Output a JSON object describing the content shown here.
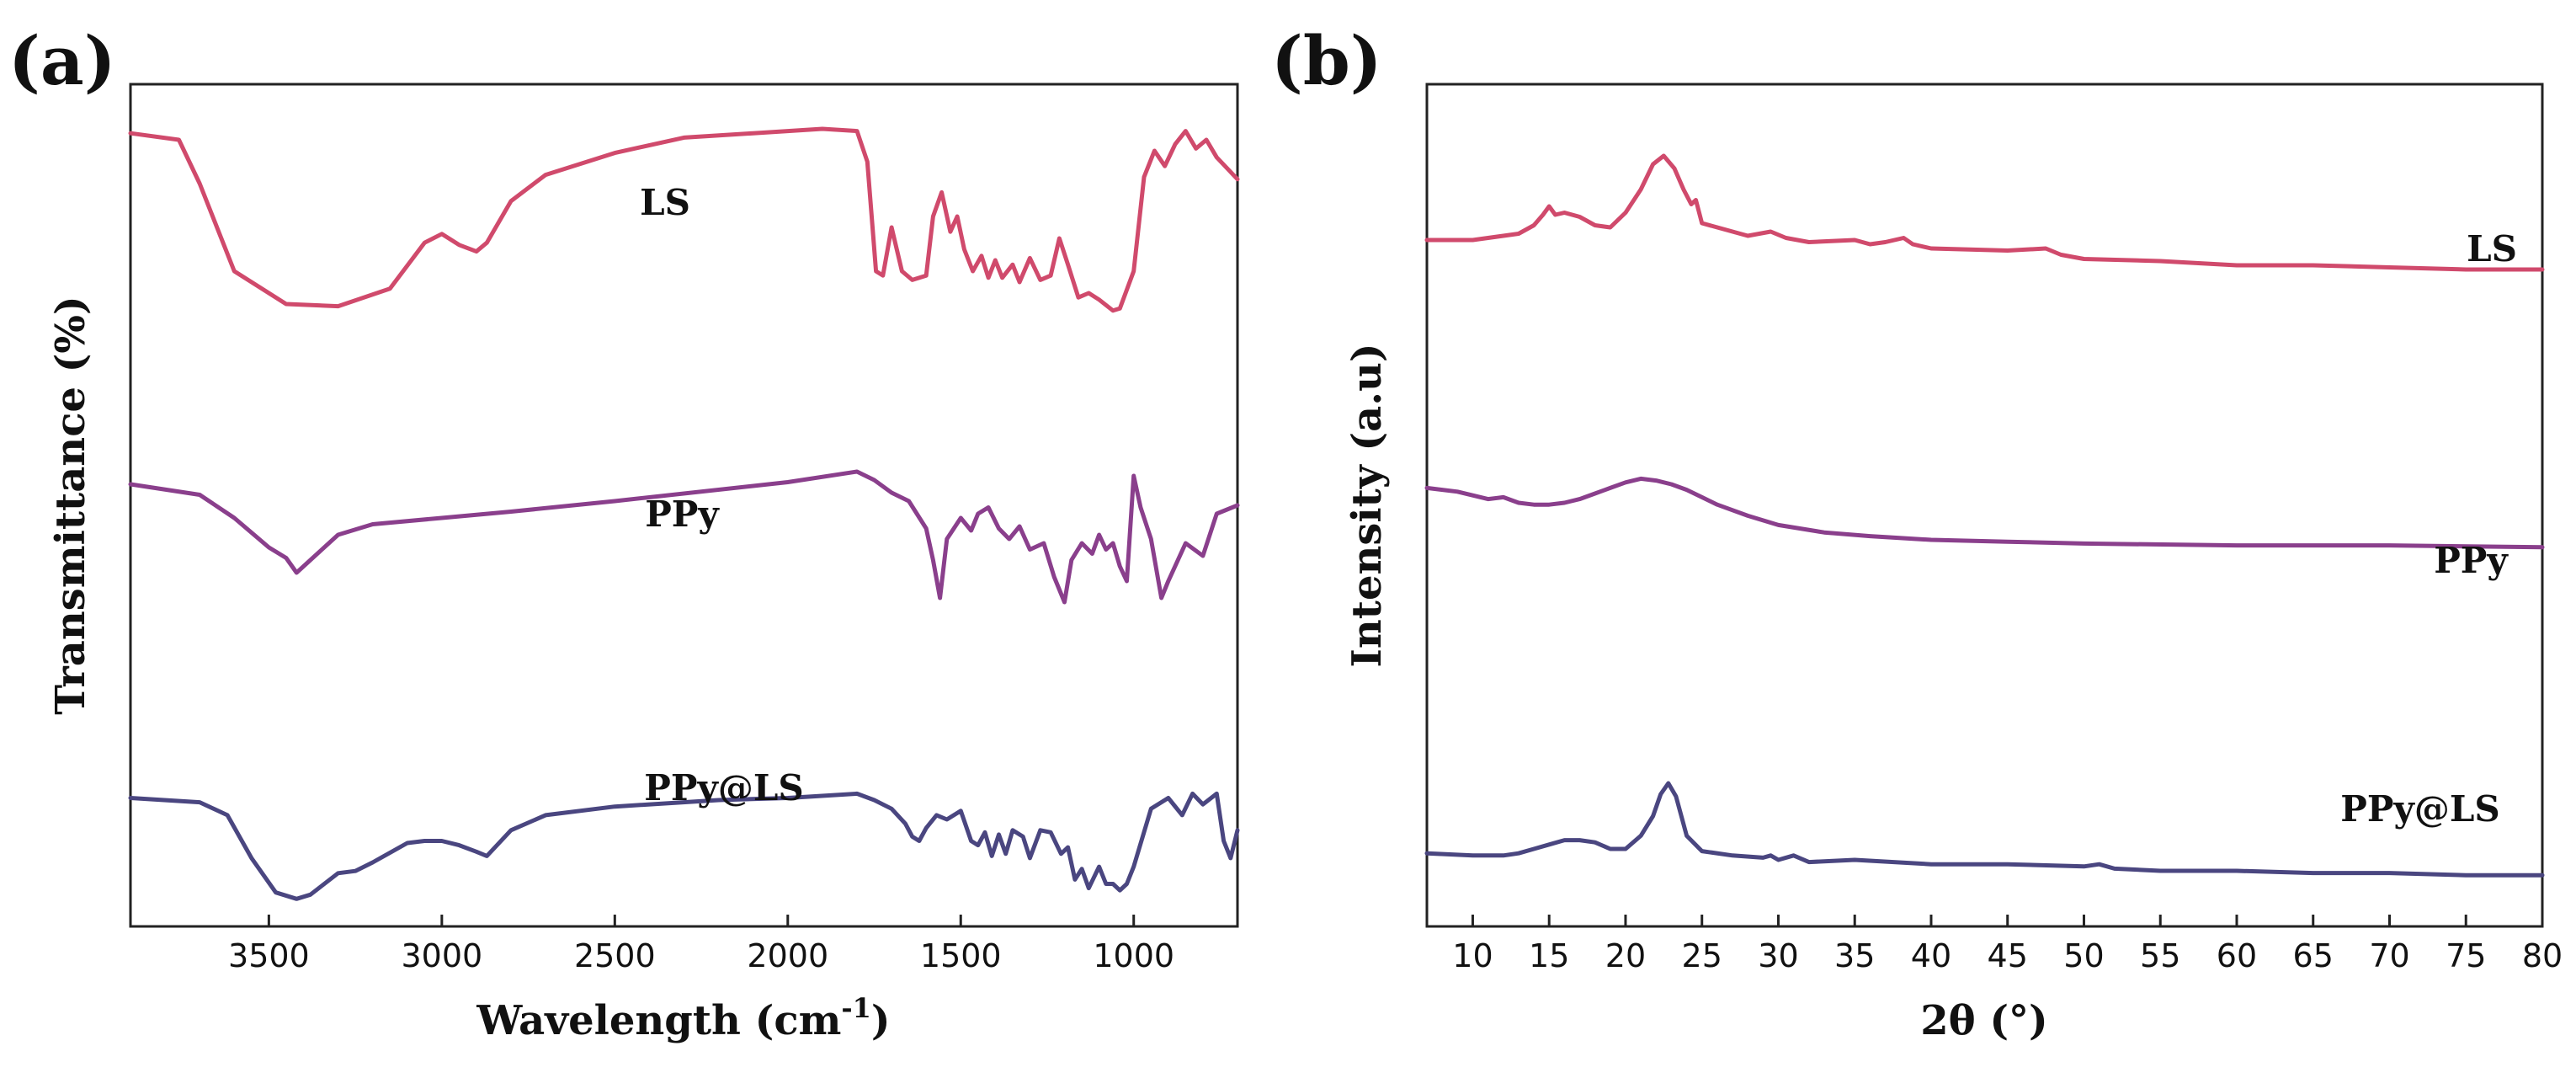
{
  "chart_data": [
    {
      "type": "line",
      "panel_label": "(a)",
      "title": "",
      "xlabel_main": "Wavelength (cm",
      "xlabel_sup": "-1",
      "xlabel_end": ")",
      "ylabel": "Transmittance (%)",
      "xlim": [
        3900,
        700
      ],
      "x_reversed": true,
      "xticks": [
        3500,
        3000,
        2500,
        2000,
        1500,
        1000
      ],
      "xtick_labels": [
        "3500",
        "3000",
        "2500",
        "2000",
        "1500",
        "1000"
      ],
      "yticks_shown": false,
      "grid": false,
      "series": [
        {
          "name": "LS",
          "color": "#d04a6c",
          "label": "LS",
          "x": [
            3900,
            3760,
            3700,
            3600,
            3450,
            3300,
            3150,
            3050,
            3000,
            2950,
            2900,
            2870,
            2800,
            2700,
            2500,
            2300,
            2100,
            1900,
            1800,
            1770,
            1745,
            1725,
            1700,
            1670,
            1640,
            1600,
            1580,
            1555,
            1530,
            1510,
            1490,
            1465,
            1440,
            1420,
            1400,
            1380,
            1350,
            1330,
            1300,
            1270,
            1240,
            1215,
            1190,
            1160,
            1130,
            1100,
            1060,
            1040,
            1000,
            970,
            940,
            910,
            880,
            850,
            820,
            790,
            760,
            700
          ],
          "y": [
            93,
            90,
            70,
            30,
            15,
            14,
            22,
            43,
            47,
            42,
            39,
            43,
            62,
            74,
            84,
            91,
            93,
            95,
            94,
            80,
            30,
            28,
            50,
            30,
            26,
            28,
            55,
            66,
            48,
            55,
            40,
            30,
            37,
            27,
            35,
            27,
            33,
            25,
            36,
            26,
            28,
            45,
            33,
            18,
            20,
            17,
            12,
            13,
            30,
            73,
            85,
            78,
            88,
            94,
            86,
            90,
            82,
            72
          ]
        },
        {
          "name": "PPy",
          "color": "#8a3f8c",
          "label": "PPy",
          "x": [
            3900,
            3700,
            3600,
            3500,
            3450,
            3420,
            3380,
            3300,
            3200,
            3000,
            2800,
            2500,
            2000,
            1800,
            1750,
            1700,
            1650,
            1600,
            1580,
            1560,
            1540,
            1500,
            1470,
            1450,
            1420,
            1390,
            1360,
            1330,
            1300,
            1260,
            1230,
            1200,
            1180,
            1150,
            1120,
            1100,
            1080,
            1060,
            1040,
            1020,
            1000,
            980,
            950,
            920,
            900,
            850,
            800,
            760,
            700
          ],
          "y": [
            66,
            61,
            50,
            36,
            31,
            24,
            30,
            42,
            47,
            50,
            53,
            58,
            67,
            72,
            68,
            62,
            58,
            45,
            30,
            12,
            40,
            50,
            44,
            52,
            55,
            45,
            40,
            46,
            35,
            38,
            22,
            10,
            30,
            38,
            33,
            42,
            35,
            38,
            27,
            20,
            70,
            55,
            40,
            12,
            20,
            38,
            32,
            52,
            56
          ]
        },
        {
          "name": "PPy@LS",
          "color": "#4a4680",
          "label": "PPy@LS",
          "x": [
            3900,
            3700,
            3620,
            3550,
            3480,
            3420,
            3380,
            3300,
            3250,
            3200,
            3100,
            3050,
            3000,
            2950,
            2900,
            2870,
            2800,
            2700,
            2500,
            2200,
            2000,
            1800,
            1750,
            1700,
            1660,
            1640,
            1620,
            1600,
            1570,
            1540,
            1500,
            1470,
            1450,
            1430,
            1410,
            1390,
            1370,
            1350,
            1320,
            1300,
            1270,
            1240,
            1210,
            1190,
            1170,
            1150,
            1130,
            1100,
            1080,
            1060,
            1040,
            1020,
            1000,
            950,
            900,
            860,
            830,
            800,
            760,
            740,
            720,
            700
          ],
          "y": [
            50,
            48,
            42,
            22,
            6,
            3,
            5,
            15,
            16,
            20,
            29,
            30,
            30,
            28,
            25,
            23,
            35,
            42,
            46,
            49,
            50,
            52,
            49,
            45,
            38,
            32,
            30,
            36,
            42,
            40,
            44,
            30,
            28,
            34,
            23,
            33,
            24,
            35,
            32,
            22,
            35,
            34,
            24,
            27,
            12,
            17,
            8,
            18,
            10,
            10,
            7,
            10,
            18,
            45,
            50,
            42,
            52,
            47,
            52,
            30,
            22,
            35
          ]
        }
      ]
    },
    {
      "type": "line",
      "panel_label": "(b)",
      "title": "",
      "xlabel": "2θ (°)",
      "ylabel": "Intensity (a.u)",
      "xlim": [
        7,
        80
      ],
      "xticks": [
        10,
        15,
        20,
        25,
        30,
        35,
        40,
        45,
        50,
        55,
        60,
        65,
        70,
        75,
        80
      ],
      "xtick_labels": [
        "10",
        "15",
        "20",
        "25",
        "30",
        "35",
        "40",
        "45",
        "50",
        "55",
        "60",
        "65",
        "70",
        "75",
        "80"
      ],
      "yticks_shown": false,
      "grid": false,
      "series": [
        {
          "name": "LS",
          "color": "#d04a6c",
          "label": "LS",
          "x": [
            7,
            10,
            12,
            13,
            14,
            14.6,
            15,
            15.4,
            16,
            17,
            18,
            19,
            20,
            21,
            21.8,
            22.5,
            23.2,
            23.8,
            24.3,
            24.6,
            25,
            26,
            28,
            29.5,
            30.5,
            32,
            35,
            36,
            37,
            38.2,
            38.8,
            40,
            45,
            47.5,
            48.5,
            50,
            55,
            60,
            65,
            70,
            75,
            80
          ],
          "y": [
            42,
            42,
            44,
            45,
            49,
            54,
            58,
            54,
            55,
            53,
            49,
            48,
            55,
            66,
            78,
            82,
            76,
            66,
            59,
            61,
            50,
            48,
            44,
            46,
            43,
            41,
            42,
            40,
            41,
            43,
            40,
            38,
            37,
            38,
            35,
            33,
            32,
            30,
            30,
            29,
            28,
            28
          ]
        },
        {
          "name": "PPy",
          "color": "#8a3f8c",
          "label": "PPy",
          "x": [
            7,
            9,
            11,
            12,
            13,
            14,
            15,
            16,
            17,
            18,
            19,
            20,
            21,
            22,
            23,
            24,
            25,
            26,
            28,
            30,
            33,
            36,
            40,
            45,
            50,
            60,
            70,
            80
          ],
          "y": [
            73,
            71,
            67,
            68,
            65,
            64,
            64,
            65,
            67,
            70,
            73,
            76,
            78,
            77,
            75,
            72,
            68,
            64,
            58,
            53,
            49,
            47,
            45,
            44,
            43,
            42,
            42,
            41
          ]
        },
        {
          "name": "PPy@LS",
          "color": "#4a4680",
          "label": "PPy@LS",
          "x": [
            7,
            10,
            12,
            13,
            14,
            15,
            16,
            17,
            18,
            19,
            20,
            21,
            21.8,
            22.3,
            22.8,
            23.3,
            24,
            25,
            27,
            29,
            29.5,
            30,
            31,
            32,
            35,
            40,
            45,
            50,
            51,
            52,
            55,
            60,
            65,
            70,
            75,
            80
          ],
          "y": [
            18,
            17,
            17,
            18,
            20,
            22,
            24,
            24,
            23,
            20,
            20,
            26,
            35,
            45,
            50,
            44,
            26,
            19,
            17,
            16,
            17,
            15,
            17,
            14,
            15,
            13,
            13,
            12,
            13,
            11,
            10,
            10,
            9,
            9,
            8,
            8
          ]
        }
      ]
    }
  ]
}
